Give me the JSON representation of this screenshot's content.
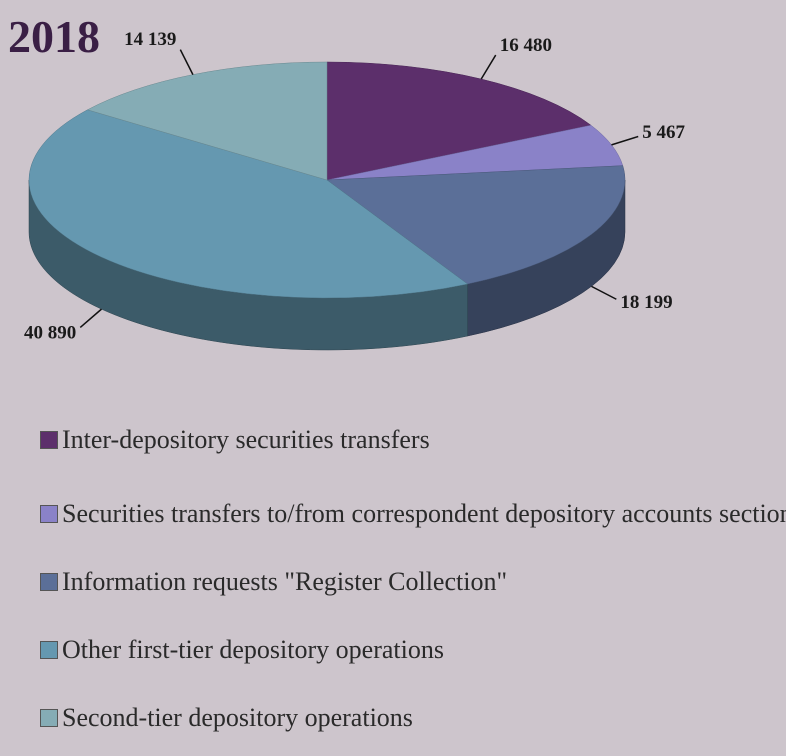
{
  "chart_data": {
    "type": "pie3d",
    "title": "2018",
    "series": [
      {
        "name": "Inter-depository securities transfers",
        "color": "#5c2f6b",
        "values": [
          16480
        ],
        "value_labels": [
          "16 480"
        ]
      },
      {
        "name": "Securities transfers to/from correspondent  depository accounts sections",
        "color": "#8a82c8",
        "values": [
          5467
        ],
        "value_labels": [
          "5 467"
        ]
      },
      {
        "name": "Information requests \"Register Collection\"",
        "color": "#5b6f98",
        "values": [
          18199
        ],
        "value_labels": [
          "18 199"
        ]
      },
      {
        "name": "Other first-tier depository operations",
        "color": "#6598b0",
        "values": [
          40890
        ],
        "value_labels": [
          "40 890"
        ]
      },
      {
        "name": "Second-tier depository operations",
        "color": "#85acb5",
        "values": [
          14139
        ],
        "value_labels": [
          "14 139"
        ]
      }
    ],
    "legend": "bottom"
  }
}
